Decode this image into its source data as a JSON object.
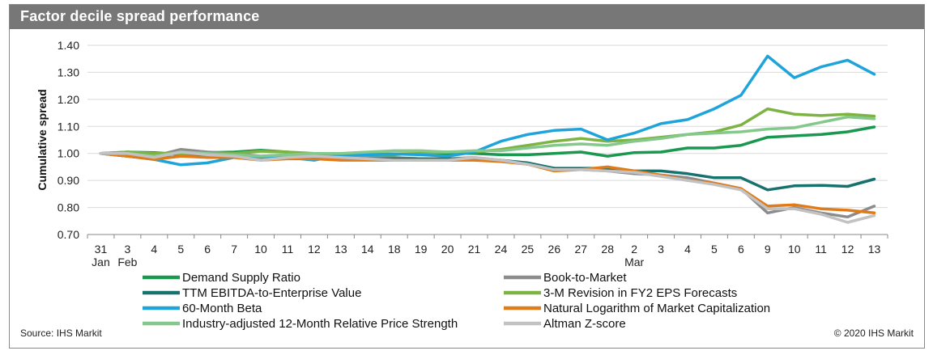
{
  "title": "Factor decile spread performance",
  "source": "Source: IHS Markit",
  "copyright": "© 2020 IHS Markit",
  "chart_data": {
    "type": "line",
    "ylabel": "Cumulative spread",
    "ylim": [
      0.7,
      1.4
    ],
    "yticks": [
      "0.70",
      "0.80",
      "0.90",
      "1.00",
      "1.10",
      "1.20",
      "1.30",
      "1.40"
    ],
    "grid": "horizontal",
    "legend_position": "bottom",
    "categories": [
      "31",
      "3",
      "4",
      "5",
      "6",
      "7",
      "10",
      "11",
      "12",
      "13",
      "14",
      "18",
      "19",
      "20",
      "21",
      "24",
      "25",
      "26",
      "27",
      "28",
      "2",
      "3",
      "4",
      "5",
      "6",
      "9",
      "10",
      "11",
      "12",
      "13"
    ],
    "month_labels": [
      {
        "index": 0,
        "text": "Jan"
      },
      {
        "index": 1,
        "text": "Feb"
      },
      {
        "index": 20,
        "text": "Mar"
      }
    ],
    "series": [
      {
        "name": "Demand Supply Ratio",
        "color": "#1a9850",
        "values": [
          1.0,
          1.005,
          1.003,
          0.997,
          1.003,
          1.005,
          1.012,
          1.005,
          0.998,
          0.997,
          0.996,
          0.996,
          1.0,
          1.0,
          1.0,
          0.995,
          0.995,
          1.0,
          1.005,
          0.99,
          1.003,
          1.005,
          1.02,
          1.02,
          1.03,
          1.06,
          1.065,
          1.07,
          1.08,
          1.098
        ]
      },
      {
        "name": "Book-to-Market",
        "color": "#8c8c8c",
        "values": [
          1.0,
          0.995,
          0.99,
          1.015,
          1.005,
          1.0,
          0.99,
          0.995,
          0.995,
          0.99,
          0.985,
          0.985,
          0.98,
          0.98,
          0.985,
          0.975,
          0.96,
          0.945,
          0.94,
          0.935,
          0.925,
          0.92,
          0.91,
          0.89,
          0.87,
          0.78,
          0.8,
          0.78,
          0.765,
          0.805
        ]
      },
      {
        "name": "TTM EBITDA-to-Enterprise Value",
        "color": "#17726e",
        "values": [
          1.0,
          0.99,
          0.98,
          0.99,
          0.99,
          0.99,
          0.98,
          0.985,
          0.985,
          0.985,
          0.98,
          0.98,
          0.98,
          0.98,
          0.98,
          0.975,
          0.965,
          0.945,
          0.945,
          0.945,
          0.935,
          0.935,
          0.925,
          0.91,
          0.91,
          0.865,
          0.88,
          0.882,
          0.878,
          0.905
        ]
      },
      {
        "name": "3-M Revision in FY2 EPS Forecasts",
        "color": "#7cb342",
        "values": [
          1.0,
          1.005,
          1.0,
          1.0,
          0.998,
          1.0,
          1.008,
          1.005,
          1.0,
          0.998,
          0.998,
          0.998,
          1.0,
          1.005,
          1.005,
          1.015,
          1.03,
          1.045,
          1.055,
          1.045,
          1.05,
          1.06,
          1.07,
          1.08,
          1.105,
          1.165,
          1.145,
          1.14,
          1.145,
          1.138
        ]
      },
      {
        "name": "60-Month Beta",
        "color": "#1ea4db",
        "values": [
          1.0,
          0.99,
          0.978,
          0.958,
          0.965,
          0.985,
          0.98,
          0.985,
          0.975,
          0.995,
          0.995,
          0.998,
          0.995,
          0.99,
          1.005,
          1.045,
          1.07,
          1.085,
          1.09,
          1.05,
          1.075,
          1.11,
          1.125,
          1.165,
          1.215,
          1.36,
          1.28,
          1.32,
          1.345,
          1.293
        ]
      },
      {
        "name": "Natural Logarithm of Market Capitalization",
        "color": "#e07b1a",
        "values": [
          1.0,
          0.99,
          0.978,
          0.99,
          0.985,
          0.985,
          0.975,
          0.98,
          0.98,
          0.975,
          0.975,
          0.975,
          0.975,
          0.975,
          0.975,
          0.97,
          0.96,
          0.935,
          0.94,
          0.95,
          0.935,
          0.92,
          0.9,
          0.89,
          0.87,
          0.805,
          0.81,
          0.795,
          0.79,
          0.78
        ]
      },
      {
        "name": "Industry-adjusted 12-Month Relative Price Strength",
        "color": "#84c88b",
        "values": [
          1.0,
          1.0,
          0.99,
          1.005,
          1.0,
          0.995,
          0.99,
          0.995,
          1.0,
          1.0,
          1.005,
          1.01,
          1.01,
          1.005,
          1.01,
          1.01,
          1.02,
          1.03,
          1.035,
          1.03,
          1.045,
          1.055,
          1.07,
          1.075,
          1.08,
          1.09,
          1.095,
          1.115,
          1.135,
          1.128
        ]
      },
      {
        "name": "Altman Z-score",
        "color": "#c2c2c2",
        "values": [
          1.0,
          1.0,
          0.985,
          1.005,
          0.995,
          0.99,
          0.975,
          0.985,
          0.99,
          0.985,
          0.98,
          0.975,
          0.975,
          0.975,
          0.985,
          0.975,
          0.96,
          0.94,
          0.94,
          0.935,
          0.93,
          0.915,
          0.9,
          0.885,
          0.865,
          0.795,
          0.795,
          0.775,
          0.745,
          0.77
        ]
      }
    ]
  }
}
